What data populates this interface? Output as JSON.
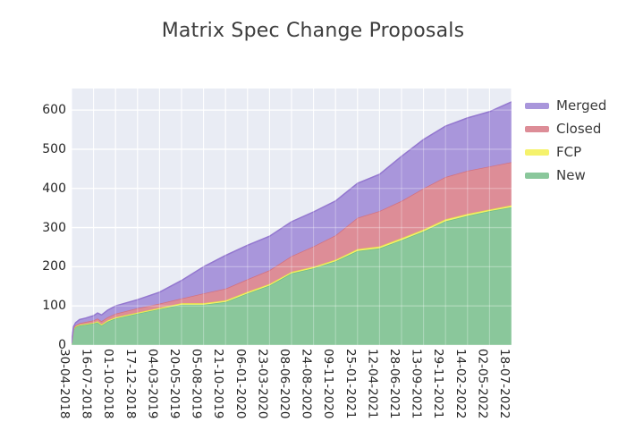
{
  "title": "Matrix Spec Change Proposals",
  "legend": {
    "items": [
      {
        "label": "Merged",
        "color": "#a996db"
      },
      {
        "label": "Closed",
        "color": "#dd8d97"
      },
      {
        "label": "FCP",
        "color": "#f5f26c"
      },
      {
        "label": "New",
        "color": "#8ac79b"
      }
    ]
  },
  "chart_data": {
    "type": "area",
    "stacked": true,
    "title": "Matrix Spec Change Proposals",
    "xlabel": "",
    "ylabel": "",
    "x_tick_labels": [
      "30-04-2018",
      "16-07-2018",
      "01-10-2018",
      "17-12-2018",
      "04-03-2019",
      "20-05-2019",
      "05-08-2019",
      "21-10-2019",
      "06-01-2020",
      "23-03-2020",
      "08-06-2020",
      "24-08-2020",
      "09-11-2020",
      "25-01-2021",
      "12-04-2021",
      "28-06-2021",
      "13-09-2021",
      "29-11-2021",
      "14-02-2022",
      "02-05-2022",
      "18-07-2022"
    ],
    "x_tick_days": [
      0,
      77,
      154,
      231,
      308,
      385,
      462,
      539,
      616,
      693,
      770,
      847,
      924,
      1001,
      1078,
      1155,
      1232,
      1309,
      1386,
      1463,
      1540
    ],
    "y_ticks": [
      0,
      100,
      200,
      300,
      400,
      500,
      600
    ],
    "ylim": [
      0,
      655
    ],
    "grid": true,
    "plot_bg": "#e9ecf4",
    "grid_color": "#ffffff",
    "legend_position": "outside upper right",
    "stack_order_bottom_to_top": [
      "New",
      "FCP",
      "Closed",
      "Merged"
    ],
    "x_days": [
      0,
      7,
      14,
      28,
      49,
      77,
      91,
      105,
      126,
      154,
      231,
      308,
      385,
      462,
      539,
      616,
      693,
      770,
      847,
      924,
      1001,
      1078,
      1155,
      1232,
      1309,
      1386,
      1463,
      1540
    ],
    "series": [
      {
        "name": "New",
        "fill": "#8ac79b",
        "line": "#6fbe85",
        "values": [
          4,
          40,
          46,
          50,
          52,
          55,
          58,
          50,
          60,
          68,
          80,
          92,
          103,
          103,
          110,
          132,
          152,
          183,
          196,
          214,
          240,
          247,
          268,
          290,
          316,
          330,
          342,
          352
        ]
      },
      {
        "name": "FCP",
        "fill": "#f5f26c",
        "line": "#e8e147",
        "values": [
          0,
          1,
          2,
          2,
          2,
          2,
          3,
          3,
          3,
          3,
          3,
          3,
          4,
          4,
          4,
          4,
          4,
          4,
          4,
          4,
          5,
          5,
          5,
          5,
          5,
          5,
          4,
          5
        ]
      },
      {
        "name": "Closed",
        "fill": "#dd8d97",
        "line": "#d3707f",
        "values": [
          0,
          2,
          3,
          4,
          5,
          6,
          7,
          8,
          8,
          9,
          11,
          11,
          12,
          25,
          30,
          32,
          35,
          40,
          52,
          62,
          80,
          90,
          95,
          105,
          108,
          110,
          110,
          110
        ]
      },
      {
        "name": "Merged",
        "fill": "#a996db",
        "line": "#9377cf",
        "values": [
          1,
          4,
          6,
          9,
          10,
          12,
          14,
          16,
          18,
          20,
          22,
          29,
          46,
          68,
          85,
          87,
          87,
          88,
          88,
          88,
          88,
          94,
          114,
          125,
          130,
          135,
          140,
          154
        ]
      }
    ]
  }
}
